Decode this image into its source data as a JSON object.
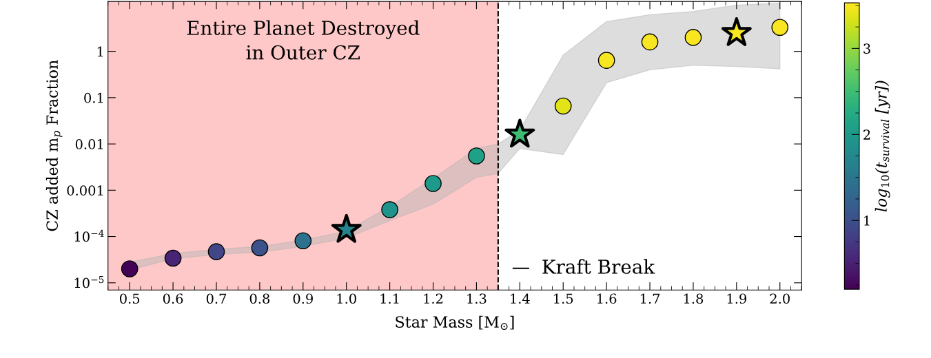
{
  "chart_data": {
    "type": "scatter",
    "xlabel": "Star Mass [M$_{⊙}$]",
    "ylabel": "CZ added m$_{p}$ Fraction",
    "clabel": "log$_{10}$(t$_{survival}$ [yr])",
    "log": "y",
    "xlim": [
      0.45,
      2.05
    ],
    "xticks": [
      {
        "value": 0.5,
        "label": "0.5"
      },
      {
        "value": 0.6,
        "label": "0.6"
      },
      {
        "value": 0.7,
        "label": "0.7"
      },
      {
        "value": 0.8,
        "label": "0.8"
      },
      {
        "value": 0.9,
        "label": "0.9"
      },
      {
        "value": 1.0,
        "label": "1.0"
      },
      {
        "value": 1.1,
        "label": "1.1"
      },
      {
        "value": 1.2,
        "label": "1.2"
      },
      {
        "value": 1.3,
        "label": "1.3"
      },
      {
        "value": 1.4,
        "label": "1.4"
      },
      {
        "value": 1.5,
        "label": "1.5"
      },
      {
        "value": 1.6,
        "label": "1.6"
      },
      {
        "value": 1.7,
        "label": "1.7"
      },
      {
        "value": 1.8,
        "label": "1.8"
      },
      {
        "value": 1.9,
        "label": "1.9"
      },
      {
        "value": 2.0,
        "label": "2.0"
      }
    ],
    "ylim": [
      7e-06,
      12
    ],
    "yticks": [
      {
        "value": 1e-05,
        "label": "10$^{−5}$"
      },
      {
        "value": 0.0001,
        "label": "10$^{−4}$"
      },
      0.001,
      0.01,
      0.1,
      1
    ],
    "clim": [
      0.2,
      3.53
    ],
    "cticks": [
      1,
      2,
      3
    ],
    "grid": false,
    "series": [
      {
        "type": "area",
        "color": "#b4b4b4",
        "x": [
          0.5,
          0.6,
          0.7,
          0.8,
          0.9,
          1.0,
          1.1,
          1.2,
          1.3,
          1.35,
          1.4,
          1.5,
          1.6,
          1.7,
          1.8,
          1.9,
          2.0
        ],
        "values": [
          null,
          null,
          null,
          null,
          null,
          null,
          null,
          null,
          null,
          null,
          null,
          null,
          null,
          null,
          null,
          null,
          null
        ],
        "lower": [
          1.9e-05,
          3.3e-05,
          4.1e-05,
          4.6e-05,
          6.1e-05,
          9.3e-05,
          0.00022,
          0.0005,
          0.0019,
          0.0023,
          0.008,
          0.0059,
          0.21,
          0.4,
          0.5,
          0.47,
          0.42
        ],
        "upper": [
          2.8e-05,
          4.3e-05,
          5.3e-05,
          6.1e-05,
          8.4e-05,
          0.00013,
          0.00045,
          0.0018,
          0.008,
          0.01,
          0.02,
          0.83,
          4.4,
          6.2,
          7.3,
          10,
          11
        ]
      },
      {
        "marker": "circle",
        "x": [
          0.5,
          0.6,
          0.7,
          0.8,
          0.9,
          1.1,
          1.2,
          1.3,
          1.5,
          1.6,
          1.7,
          1.8,
          2.0
        ],
        "values": [
          2e-05,
          3.4e-05,
          4.7e-05,
          5.7e-05,
          8.1e-05,
          0.00038,
          0.0014,
          0.0055,
          0.066,
          0.64,
          1.6,
          2.0,
          3.3
        ],
        "colors": [
          "#440256",
          "#482475",
          "#404688",
          "#3b528b",
          "#2c728e",
          "#1f948c",
          "#1f9a8a",
          "#1fa188",
          "#e2e418",
          "#f8e621",
          "#f8e621",
          "#f8e621",
          "#f8e621"
        ]
      },
      {
        "type": "scatter",
        "marker": "star",
        "x": [
          1.0,
          1.4,
          1.9
        ],
        "values": [
          0.00014,
          0.016,
          2.5
        ],
        "colors": [
          "#25838e",
          "#3fbc73",
          "#f8e621"
        ]
      }
    ],
    "bands": [
      {
        "axis": "x",
        "from": 0.45,
        "to": 1.35,
        "label": "Entire Planet Destroyed\nin Outer CZ",
        "color": "#ffc8c8"
      }
    ],
    "ref_lines": [
      {
        "axis": "x",
        "value": 1.35,
        "label": "Kraft Break",
        "color": "#000000",
        "line_style": "dashed"
      }
    ]
  }
}
